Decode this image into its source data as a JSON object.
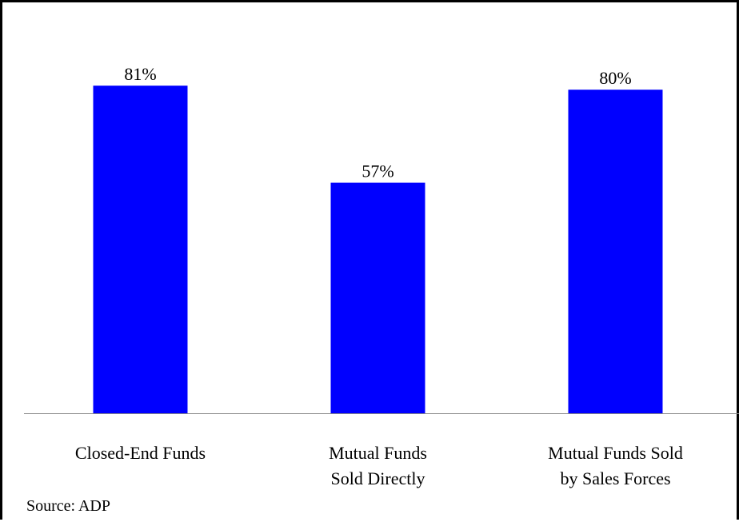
{
  "chart_data": {
    "type": "bar",
    "categories": [
      "Closed-End Funds",
      "Mutual Funds\nSold Directly",
      "Mutual Funds Sold\nby Sales Forces"
    ],
    "values": [
      81,
      57,
      80
    ],
    "value_labels": [
      "81%",
      "57%",
      "80%"
    ],
    "color": "#0000ff",
    "ylim": [
      0,
      100
    ],
    "source": "Source: ADP"
  }
}
